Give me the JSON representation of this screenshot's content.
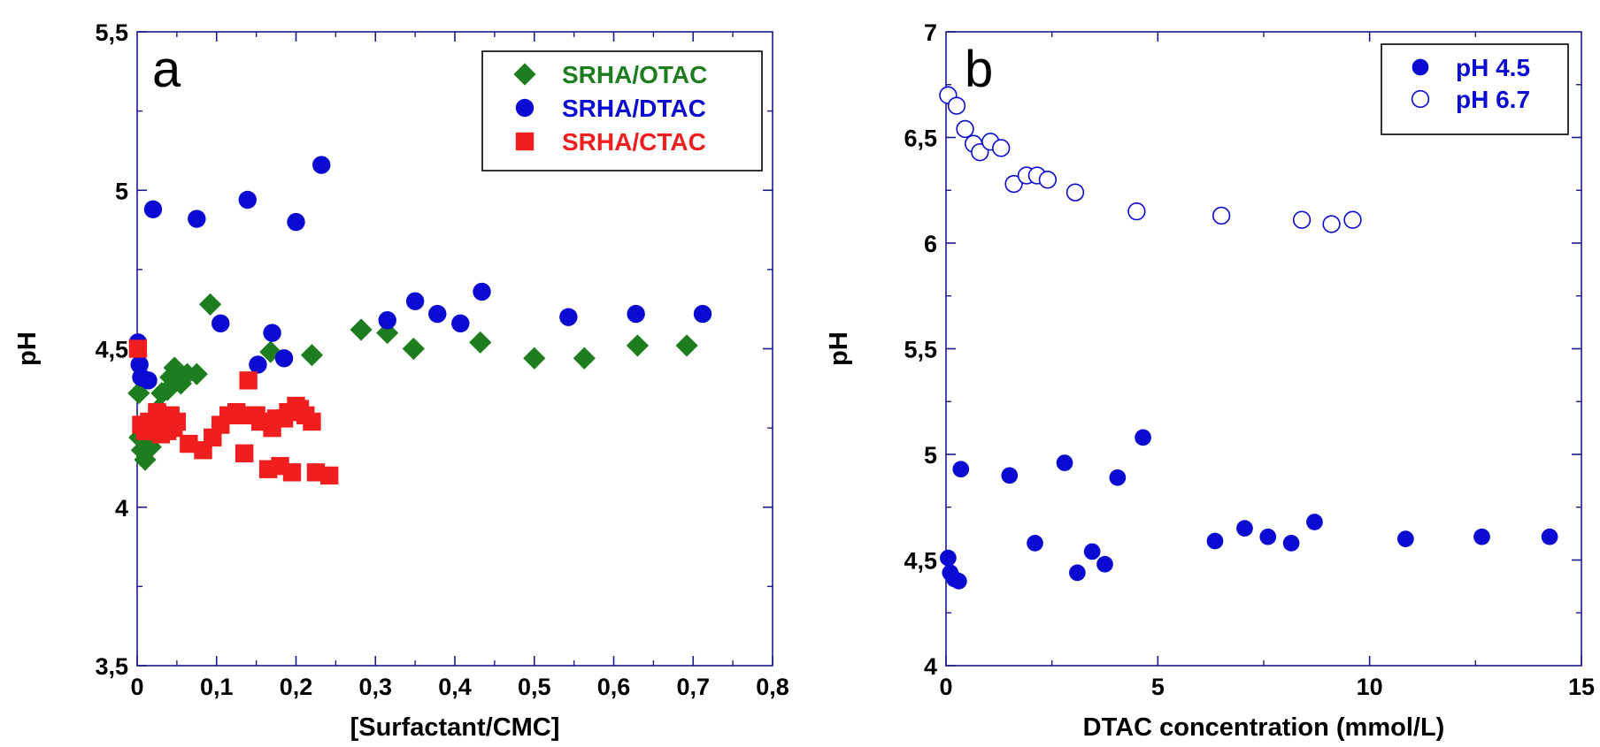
{
  "chart_data": [
    {
      "type": "scatter",
      "panel_label": "a",
      "xlabel": "[Surfactant/CMC]",
      "ylabel": "pH",
      "xlim": [
        0,
        0.8
      ],
      "ylim": [
        3.5,
        5.5
      ],
      "x_ticks": [
        "0",
        "0,1",
        "0,2",
        "0,3",
        "0,4",
        "0,5",
        "0,6",
        "0,7",
        "0,8"
      ],
      "y_ticks": [
        "3,5",
        "4",
        "4,5",
        "5",
        "5,5"
      ],
      "legend_position": "top-right",
      "grid": false,
      "series": [
        {
          "name": "SRHA/OTAC",
          "marker": "diamond",
          "color": "#1e7d1e",
          "points": [
            [
              0.002,
              4.36
            ],
            [
              0.003,
              4.22
            ],
            [
              0.006,
              4.18
            ],
            [
              0.01,
              4.15
            ],
            [
              0.013,
              4.24
            ],
            [
              0.017,
              4.19
            ],
            [
              0.021,
              4.22
            ],
            [
              0.027,
              4.31
            ],
            [
              0.031,
              4.36
            ],
            [
              0.038,
              4.37
            ],
            [
              0.042,
              4.41
            ],
            [
              0.047,
              4.44
            ],
            [
              0.055,
              4.39
            ],
            [
              0.063,
              4.42
            ],
            [
              0.075,
              4.42
            ],
            [
              0.092,
              4.64
            ],
            [
              0.168,
              4.49
            ],
            [
              0.22,
              4.48
            ],
            [
              0.282,
              4.56
            ],
            [
              0.315,
              4.55
            ],
            [
              0.348,
              4.5
            ],
            [
              0.432,
              4.52
            ],
            [
              0.5,
              4.47
            ],
            [
              0.563,
              4.47
            ],
            [
              0.63,
              4.51
            ],
            [
              0.692,
              4.51
            ]
          ]
        },
        {
          "name": "SRHA/DTAC",
          "marker": "circle",
          "color": "#0a0ad2",
          "points": [
            [
              0.001,
              4.52
            ],
            [
              0.003,
              4.45
            ],
            [
              0.005,
              4.41
            ],
            [
              0.014,
              4.4
            ],
            [
              0.02,
              4.94
            ],
            [
              0.075,
              4.91
            ],
            [
              0.105,
              4.58
            ],
            [
              0.139,
              4.97
            ],
            [
              0.152,
              4.45
            ],
            [
              0.17,
              4.55
            ],
            [
              0.185,
              4.47
            ],
            [
              0.2,
              4.9
            ],
            [
              0.232,
              5.08
            ],
            [
              0.315,
              4.59
            ],
            [
              0.35,
              4.65
            ],
            [
              0.378,
              4.61
            ],
            [
              0.407,
              4.58
            ],
            [
              0.434,
              4.68
            ],
            [
              0.543,
              4.6
            ],
            [
              0.628,
              4.61
            ],
            [
              0.712,
              4.61
            ]
          ]
        },
        {
          "name": "SRHA/CTAC",
          "marker": "square",
          "color": "#f01e1e",
          "points": [
            [
              0.001,
              4.5
            ],
            [
              0.005,
              4.26
            ],
            [
              0.01,
              4.24
            ],
            [
              0.015,
              4.27
            ],
            [
              0.02,
              4.26
            ],
            [
              0.025,
              4.3
            ],
            [
              0.028,
              4.27
            ],
            [
              0.03,
              4.23
            ],
            [
              0.035,
              4.26
            ],
            [
              0.038,
              4.24
            ],
            [
              0.042,
              4.29
            ],
            [
              0.046,
              4.25
            ],
            [
              0.05,
              4.27
            ],
            [
              0.065,
              4.2
            ],
            [
              0.083,
              4.18
            ],
            [
              0.095,
              4.22
            ],
            [
              0.105,
              4.26
            ],
            [
              0.115,
              4.29
            ],
            [
              0.125,
              4.3
            ],
            [
              0.13,
              4.29
            ],
            [
              0.135,
              4.17
            ],
            [
              0.14,
              4.4
            ],
            [
              0.145,
              4.29
            ],
            [
              0.15,
              4.29
            ],
            [
              0.155,
              4.27
            ],
            [
              0.16,
              4.27
            ],
            [
              0.165,
              4.12
            ],
            [
              0.17,
              4.25
            ],
            [
              0.175,
              4.28
            ],
            [
              0.18,
              4.13
            ],
            [
              0.185,
              4.28
            ],
            [
              0.19,
              4.3
            ],
            [
              0.195,
              4.11
            ],
            [
              0.2,
              4.32
            ],
            [
              0.205,
              4.31
            ],
            [
              0.212,
              4.29
            ],
            [
              0.22,
              4.27
            ],
            [
              0.225,
              4.11
            ],
            [
              0.242,
              4.1
            ]
          ]
        }
      ]
    },
    {
      "type": "scatter",
      "panel_label": "b",
      "xlabel": "DTAC concentration (mmol/L)",
      "ylabel": "pH",
      "xlim": [
        0,
        15
      ],
      "ylim": [
        4,
        7
      ],
      "x_ticks": [
        "0",
        "5",
        "10",
        "15"
      ],
      "y_ticks": [
        "4",
        "4,5",
        "5",
        "5,5",
        "6",
        "6,5",
        "7"
      ],
      "legend_position": "top-right",
      "grid": false,
      "series": [
        {
          "name": "pH 4.5",
          "marker": "filled-circle",
          "color": "#0a0ad2",
          "points": [
            [
              0.05,
              4.51
            ],
            [
              0.1,
              4.44
            ],
            [
              0.2,
              4.41
            ],
            [
              0.3,
              4.4
            ],
            [
              0.35,
              4.93
            ],
            [
              1.5,
              4.9
            ],
            [
              2.1,
              4.58
            ],
            [
              2.8,
              4.96
            ],
            [
              3.1,
              4.44
            ],
            [
              3.45,
              4.54
            ],
            [
              3.75,
              4.48
            ],
            [
              4.05,
              4.89
            ],
            [
              4.65,
              5.08
            ],
            [
              6.35,
              4.59
            ],
            [
              7.05,
              4.65
            ],
            [
              7.6,
              4.61
            ],
            [
              8.15,
              4.58
            ],
            [
              8.7,
              4.68
            ],
            [
              10.85,
              4.6
            ],
            [
              12.65,
              4.61
            ],
            [
              14.25,
              4.61
            ]
          ]
        },
        {
          "name": "pH 6.7",
          "marker": "open-circle",
          "color": "#0a0ad2",
          "points": [
            [
              0.05,
              6.7
            ],
            [
              0.25,
              6.65
            ],
            [
              0.45,
              6.54
            ],
            [
              0.65,
              6.47
            ],
            [
              0.8,
              6.43
            ],
            [
              1.05,
              6.48
            ],
            [
              1.3,
              6.45
            ],
            [
              1.6,
              6.28
            ],
            [
              1.9,
              6.32
            ],
            [
              2.15,
              6.32
            ],
            [
              2.4,
              6.3
            ],
            [
              3.05,
              6.24
            ],
            [
              4.5,
              6.15
            ],
            [
              6.5,
              6.13
            ],
            [
              8.4,
              6.11
            ],
            [
              9.1,
              6.09
            ],
            [
              9.6,
              6.11
            ]
          ]
        }
      ]
    }
  ]
}
